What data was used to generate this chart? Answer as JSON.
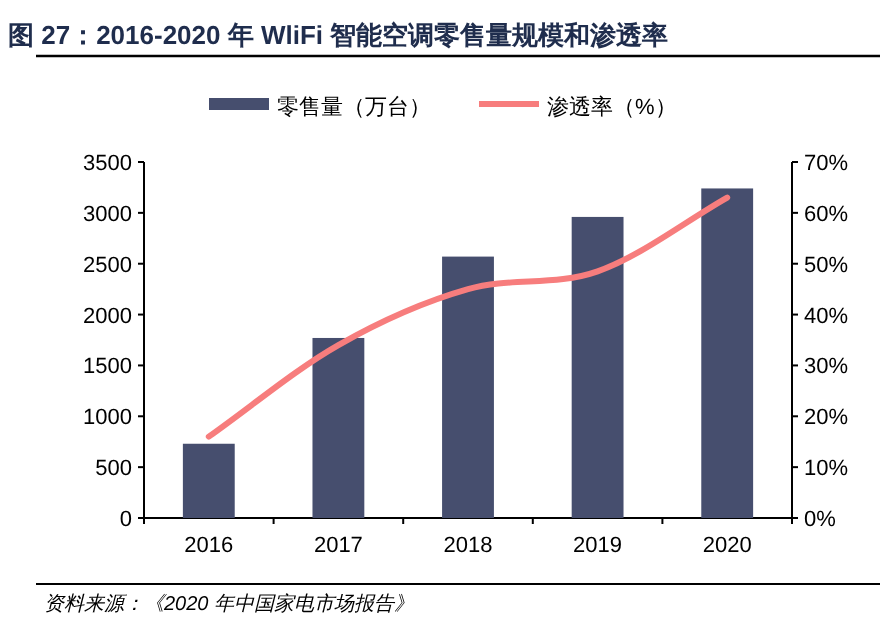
{
  "chart_data": {
    "type": "bar",
    "title": "图 27：2016-2020 年 WliFi 智能空调零售量规模和渗透率",
    "categories": [
      "2016",
      "2017",
      "2018",
      "2019",
      "2020"
    ],
    "series": [
      {
        "name": "零售量（万台）",
        "color": "#464e6e",
        "values": [
          730,
          1770,
          2570,
          2960,
          3240
        ]
      },
      {
        "name": "渗透率（%）",
        "type": "line",
        "axis": "y2",
        "color": "#f77d7d",
        "values": [
          16,
          34,
          45,
          48.5,
          63
        ]
      }
    ],
    "ylim": [
      0,
      3500
    ],
    "yticks": [
      0,
      500,
      1000,
      1500,
      2000,
      2500,
      3000,
      3500
    ],
    "y2lim": [
      0,
      70
    ],
    "y2ticks": [
      {
        "value": 0,
        "label": "0%"
      },
      {
        "value": 10,
        "label": "10%"
      },
      {
        "value": 20,
        "label": "20%"
      },
      {
        "value": 30,
        "label": "30%"
      },
      {
        "value": 40,
        "label": "40%"
      },
      {
        "value": 50,
        "label": "50%"
      },
      {
        "value": 60,
        "label": "60%"
      },
      {
        "value": 70,
        "label": "70%"
      }
    ],
    "legend": "top",
    "annotations": [
      "资料来源：《2020 年中国家电市场报告》"
    ]
  }
}
